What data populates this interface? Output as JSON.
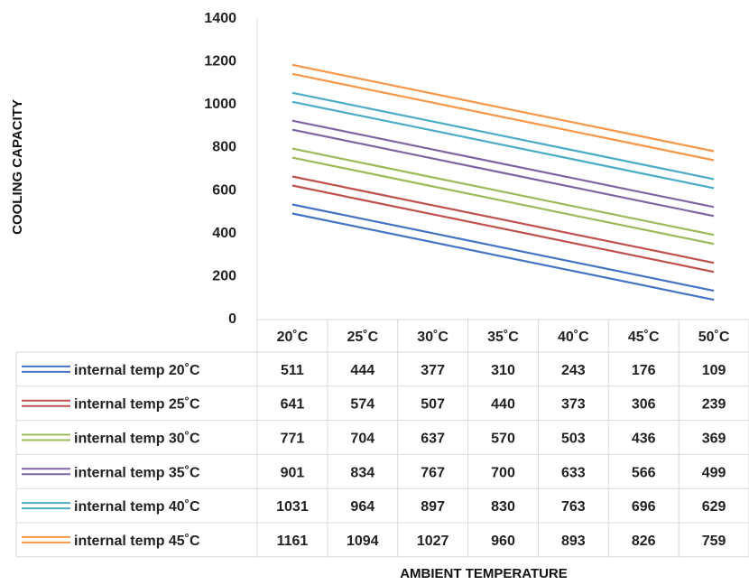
{
  "chart_data": {
    "type": "line",
    "categories": [
      "20˚C",
      "25˚C",
      "30˚C",
      "35˚C",
      "40˚C",
      "45˚C",
      "50˚C"
    ],
    "series": [
      {
        "name": "internal temp 20˚C",
        "color": "#4472C4",
        "values": [
          511,
          444,
          377,
          310,
          243,
          176,
          109
        ]
      },
      {
        "name": "internal temp 25˚C",
        "color": "#C0504D",
        "values": [
          641,
          574,
          507,
          440,
          373,
          306,
          239
        ]
      },
      {
        "name": "internal temp 30˚C",
        "color": "#9BBB59",
        "values": [
          771,
          704,
          637,
          570,
          503,
          436,
          369
        ]
      },
      {
        "name": "internal temp 35˚C",
        "color": "#8064A2",
        "values": [
          901,
          834,
          767,
          700,
          633,
          566,
          499
        ]
      },
      {
        "name": "internal temp 40˚C",
        "color": "#4BACC6",
        "values": [
          1031,
          964,
          897,
          830,
          763,
          696,
          629
        ]
      },
      {
        "name": "internal temp 45˚C",
        "color": "#F79646",
        "values": [
          1161,
          1094,
          1027,
          960,
          893,
          826,
          759
        ]
      }
    ],
    "ylabel": "COOLING  CAPACITY",
    "xlabel": "AMBIENT TEMPERATURE",
    "ylim": [
      0,
      1400
    ],
    "yticks": [
      "0",
      "200",
      "400",
      "600",
      "800",
      "1000",
      "1200",
      "1400"
    ],
    "grid": false,
    "legend": "data-table-left",
    "line_style": "double"
  }
}
